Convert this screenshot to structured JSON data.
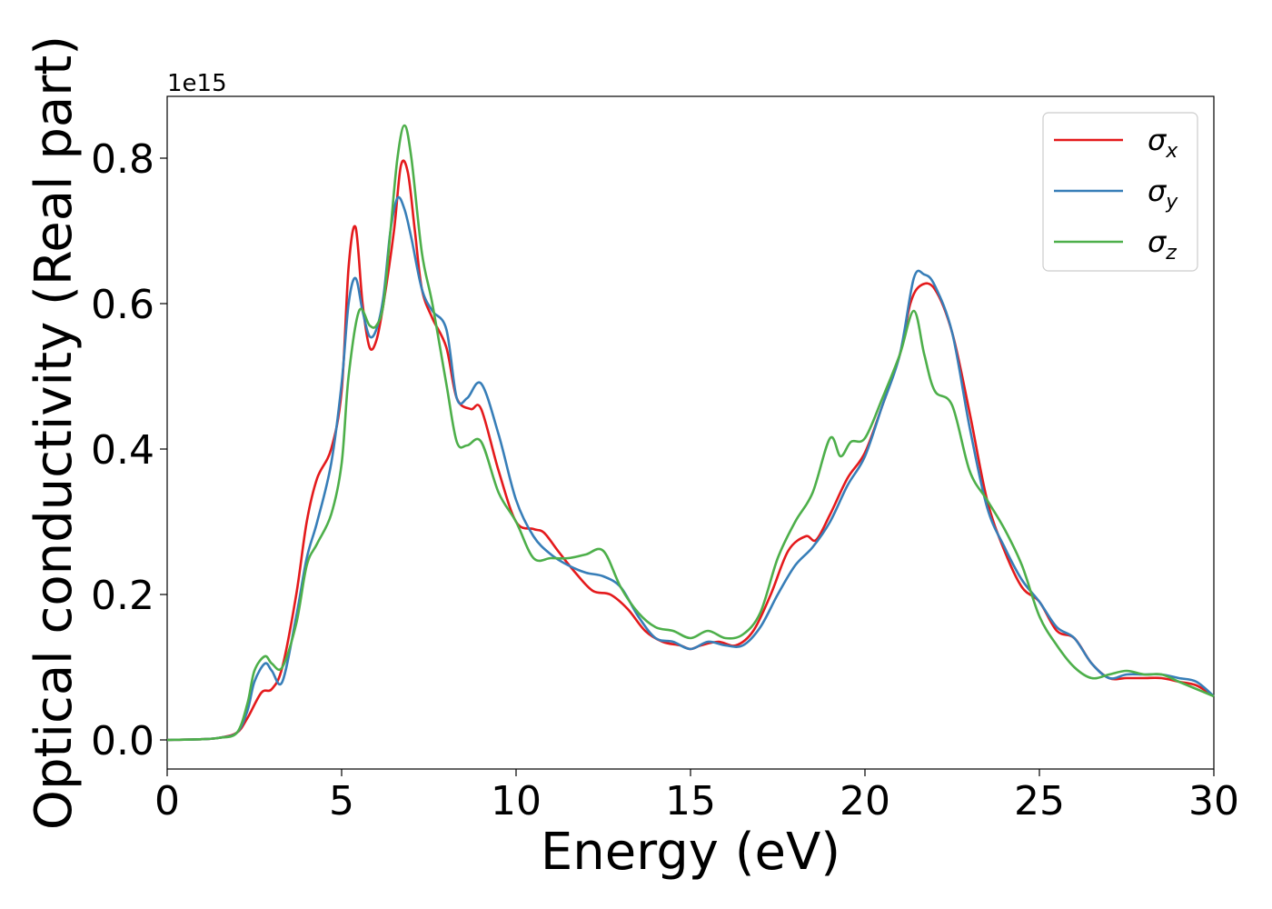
{
  "chart_data": {
    "type": "line",
    "xlabel": "Energy (eV)",
    "ylabel": "Optical conductivity (Real part)",
    "y_offset_label": "1e15",
    "xlim": [
      0,
      30
    ],
    "ylim": [
      -0.04,
      0.885
    ],
    "xticks": [
      0,
      5,
      10,
      15,
      20,
      25,
      30
    ],
    "xtick_labels": [
      "0",
      "5",
      "10",
      "15",
      "20",
      "25",
      "30"
    ],
    "yticks": [
      0.0,
      0.2,
      0.4,
      0.6,
      0.8
    ],
    "ytick_labels": [
      "0.0",
      "0.2",
      "0.4",
      "0.6",
      "0.8"
    ],
    "grid": false,
    "legend_position": "top-right",
    "series": [
      {
        "name": "σx",
        "symbol": "σ",
        "subscript": "x",
        "color": "#e41a1c",
        "x": [
          0,
          1,
          1.5,
          2,
          2.3,
          2.7,
          3.0,
          3.3,
          3.7,
          4.0,
          4.3,
          4.7,
          5.0,
          5.2,
          5.4,
          5.6,
          5.8,
          6.0,
          6.2,
          6.5,
          6.7,
          6.9,
          7.1,
          7.3,
          7.6,
          8.0,
          8.3,
          8.7,
          9.0,
          9.5,
          10.0,
          10.5,
          10.8,
          11.2,
          11.7,
          12.2,
          12.7,
          13.2,
          13.7,
          14.2,
          14.7,
          15.0,
          15.3,
          15.8,
          16.3,
          16.8,
          17.3,
          17.8,
          18.3,
          18.6,
          19.0,
          19.5,
          20.0,
          20.5,
          21.0,
          21.3,
          21.6,
          22.0,
          22.5,
          23.0,
          23.5,
          24.0,
          24.5,
          25.0,
          25.5,
          26.0,
          26.5,
          27.0,
          27.5,
          28.0,
          28.5,
          29.0,
          29.5,
          30.0
        ],
        "y": [
          0,
          0.001,
          0.003,
          0.01,
          0.03,
          0.065,
          0.07,
          0.1,
          0.2,
          0.3,
          0.36,
          0.4,
          0.48,
          0.65,
          0.705,
          0.6,
          0.54,
          0.55,
          0.6,
          0.7,
          0.79,
          0.78,
          0.7,
          0.62,
          0.58,
          0.54,
          0.47,
          0.455,
          0.455,
          0.37,
          0.3,
          0.29,
          0.285,
          0.26,
          0.23,
          0.205,
          0.2,
          0.18,
          0.15,
          0.135,
          0.13,
          0.125,
          0.13,
          0.135,
          0.13,
          0.15,
          0.2,
          0.26,
          0.28,
          0.275,
          0.31,
          0.36,
          0.395,
          0.46,
          0.53,
          0.6,
          0.625,
          0.62,
          0.56,
          0.45,
          0.33,
          0.26,
          0.21,
          0.19,
          0.15,
          0.14,
          0.105,
          0.085,
          0.085,
          0.085,
          0.085,
          0.08,
          0.075,
          0.06
        ]
      },
      {
        "name": "σy",
        "symbol": "σ",
        "subscript": "y",
        "color": "#377eb8",
        "x": [
          0,
          1,
          1.5,
          2,
          2.3,
          2.5,
          2.8,
          3.0,
          3.3,
          3.7,
          4.0,
          4.3,
          4.7,
          5.0,
          5.2,
          5.4,
          5.6,
          5.8,
          6.0,
          6.2,
          6.4,
          6.6,
          6.8,
          7.0,
          7.3,
          7.6,
          8.0,
          8.3,
          8.6,
          9.0,
          9.5,
          10.0,
          10.5,
          11.0,
          11.5,
          12.0,
          12.5,
          13.0,
          13.5,
          14.0,
          14.5,
          15.0,
          15.5,
          16.0,
          16.5,
          17.0,
          17.5,
          18.0,
          18.5,
          19.0,
          19.5,
          20.0,
          20.5,
          21.0,
          21.4,
          21.7,
          22.0,
          22.5,
          23.0,
          23.5,
          24.0,
          24.5,
          25.0,
          25.5,
          26.0,
          26.5,
          27.0,
          27.5,
          28.0,
          28.5,
          29.0,
          29.5,
          30.0
        ],
        "y": [
          0,
          0.001,
          0.003,
          0.01,
          0.04,
          0.08,
          0.105,
          0.095,
          0.08,
          0.17,
          0.25,
          0.3,
          0.38,
          0.49,
          0.6,
          0.635,
          0.59,
          0.555,
          0.565,
          0.61,
          0.7,
          0.745,
          0.73,
          0.69,
          0.62,
          0.59,
          0.565,
          0.47,
          0.47,
          0.49,
          0.42,
          0.33,
          0.28,
          0.255,
          0.24,
          0.23,
          0.225,
          0.21,
          0.17,
          0.14,
          0.135,
          0.125,
          0.135,
          0.13,
          0.13,
          0.155,
          0.2,
          0.24,
          0.265,
          0.3,
          0.35,
          0.39,
          0.46,
          0.53,
          0.635,
          0.64,
          0.625,
          0.56,
          0.43,
          0.32,
          0.265,
          0.22,
          0.19,
          0.155,
          0.14,
          0.105,
          0.085,
          0.09,
          0.09,
          0.09,
          0.085,
          0.08,
          0.06
        ]
      },
      {
        "name": "σz",
        "symbol": "σ",
        "subscript": "z",
        "color": "#4daf4a",
        "x": [
          0,
          1,
          1.5,
          2,
          2.3,
          2.5,
          2.8,
          3.0,
          3.3,
          3.7,
          4.0,
          4.3,
          4.7,
          5.0,
          5.2,
          5.5,
          5.8,
          6.0,
          6.2,
          6.4,
          6.6,
          6.8,
          7.0,
          7.3,
          7.6,
          8.0,
          8.3,
          8.6,
          9.0,
          9.5,
          10.0,
          10.5,
          11.0,
          11.5,
          12.0,
          12.5,
          13.0,
          13.5,
          14.0,
          14.5,
          15.0,
          15.5,
          16.0,
          16.5,
          17.0,
          17.5,
          18.0,
          18.5,
          19.0,
          19.3,
          19.6,
          20.0,
          20.5,
          21.0,
          21.4,
          21.7,
          22.0,
          22.5,
          23.0,
          23.5,
          24.0,
          24.5,
          25.0,
          25.5,
          26.0,
          26.5,
          27.0,
          27.5,
          28.0,
          28.5,
          29.0,
          29.5,
          30.0
        ],
        "y": [
          0,
          0.001,
          0.003,
          0.01,
          0.05,
          0.095,
          0.115,
          0.105,
          0.1,
          0.16,
          0.24,
          0.27,
          0.31,
          0.38,
          0.5,
          0.59,
          0.57,
          0.57,
          0.6,
          0.7,
          0.8,
          0.845,
          0.8,
          0.67,
          0.6,
          0.49,
          0.41,
          0.405,
          0.41,
          0.34,
          0.3,
          0.25,
          0.25,
          0.25,
          0.255,
          0.26,
          0.21,
          0.175,
          0.155,
          0.15,
          0.14,
          0.15,
          0.14,
          0.145,
          0.175,
          0.25,
          0.3,
          0.34,
          0.415,
          0.39,
          0.41,
          0.415,
          0.47,
          0.53,
          0.59,
          0.53,
          0.48,
          0.46,
          0.37,
          0.33,
          0.29,
          0.24,
          0.17,
          0.13,
          0.1,
          0.085,
          0.09,
          0.095,
          0.09,
          0.09,
          0.08,
          0.07,
          0.06
        ]
      }
    ]
  }
}
